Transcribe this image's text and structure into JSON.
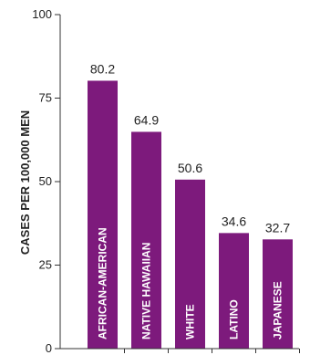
{
  "chart_data": {
    "type": "bar",
    "title": "",
    "xlabel": "",
    "ylabel": "CASES PER 100,000 MEN",
    "ylim": [
      0,
      100
    ],
    "yticks": [
      0,
      25,
      50,
      75,
      100
    ],
    "categories": [
      "AFRICAN-AMERICAN",
      "NATIVE HAWAIIAN",
      "WHITE",
      "LATINO",
      "JAPANESE"
    ],
    "values": [
      80.2,
      64.9,
      50.6,
      34.6,
      32.7
    ],
    "value_labels": [
      "80.2",
      "64.9",
      "50.6",
      "34.6",
      "32.7"
    ],
    "bar_color": "#7d1a7c",
    "axis_color": "#333333",
    "grid": false,
    "legend": "none"
  }
}
